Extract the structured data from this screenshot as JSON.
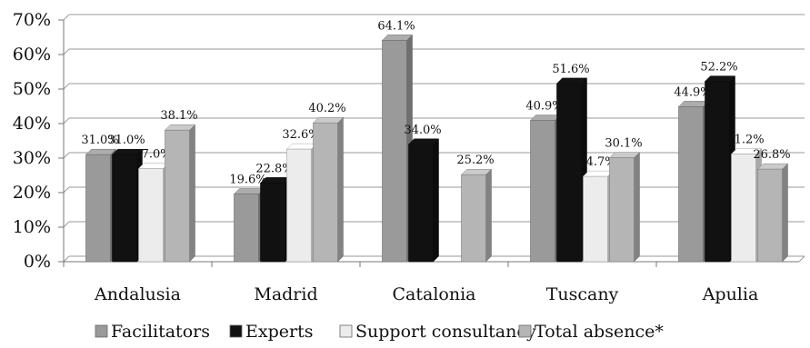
{
  "chart_data": {
    "type": "bar",
    "categories": [
      "Andalusia",
      "Madrid",
      "Catalonia",
      "Tuscany",
      "Apulia"
    ],
    "series": [
      {
        "name": "Facilitators",
        "values": [
          31.0,
          19.6,
          64.1,
          40.9,
          44.9
        ],
        "labels": [
          "31.0%",
          "19.6%",
          "64.1%",
          "40.9%",
          "44.9%"
        ],
        "color": "#9a9a9a"
      },
      {
        "name": "Experts",
        "values": [
          31.0,
          22.8,
          34.0,
          51.6,
          52.2
        ],
        "labels": [
          "31.0%",
          "22.8%",
          "34.0%",
          "51.6%",
          "52.2%"
        ],
        "color": "#111111"
      },
      {
        "name": "Support consultancy",
        "values": [
          27.0,
          32.6,
          null,
          24.7,
          31.2
        ],
        "labels": [
          "27.0%",
          "32.6%",
          "",
          "24.7%",
          "31.2%"
        ],
        "color": "#ececec"
      },
      {
        "name": "Total absence*",
        "values": [
          38.1,
          40.2,
          25.2,
          30.1,
          26.8
        ],
        "labels": [
          "38.1%",
          "40.2%",
          "25.2%",
          "30.1%",
          "26.8%"
        ],
        "color": "#b5b5b5"
      }
    ],
    "y_ticks": [
      "0%",
      "10%",
      "20%",
      "30%",
      "40%",
      "50%",
      "60%",
      "70%"
    ],
    "ylim": [
      0,
      70
    ],
    "grid": true,
    "legend_position": "bottom"
  }
}
